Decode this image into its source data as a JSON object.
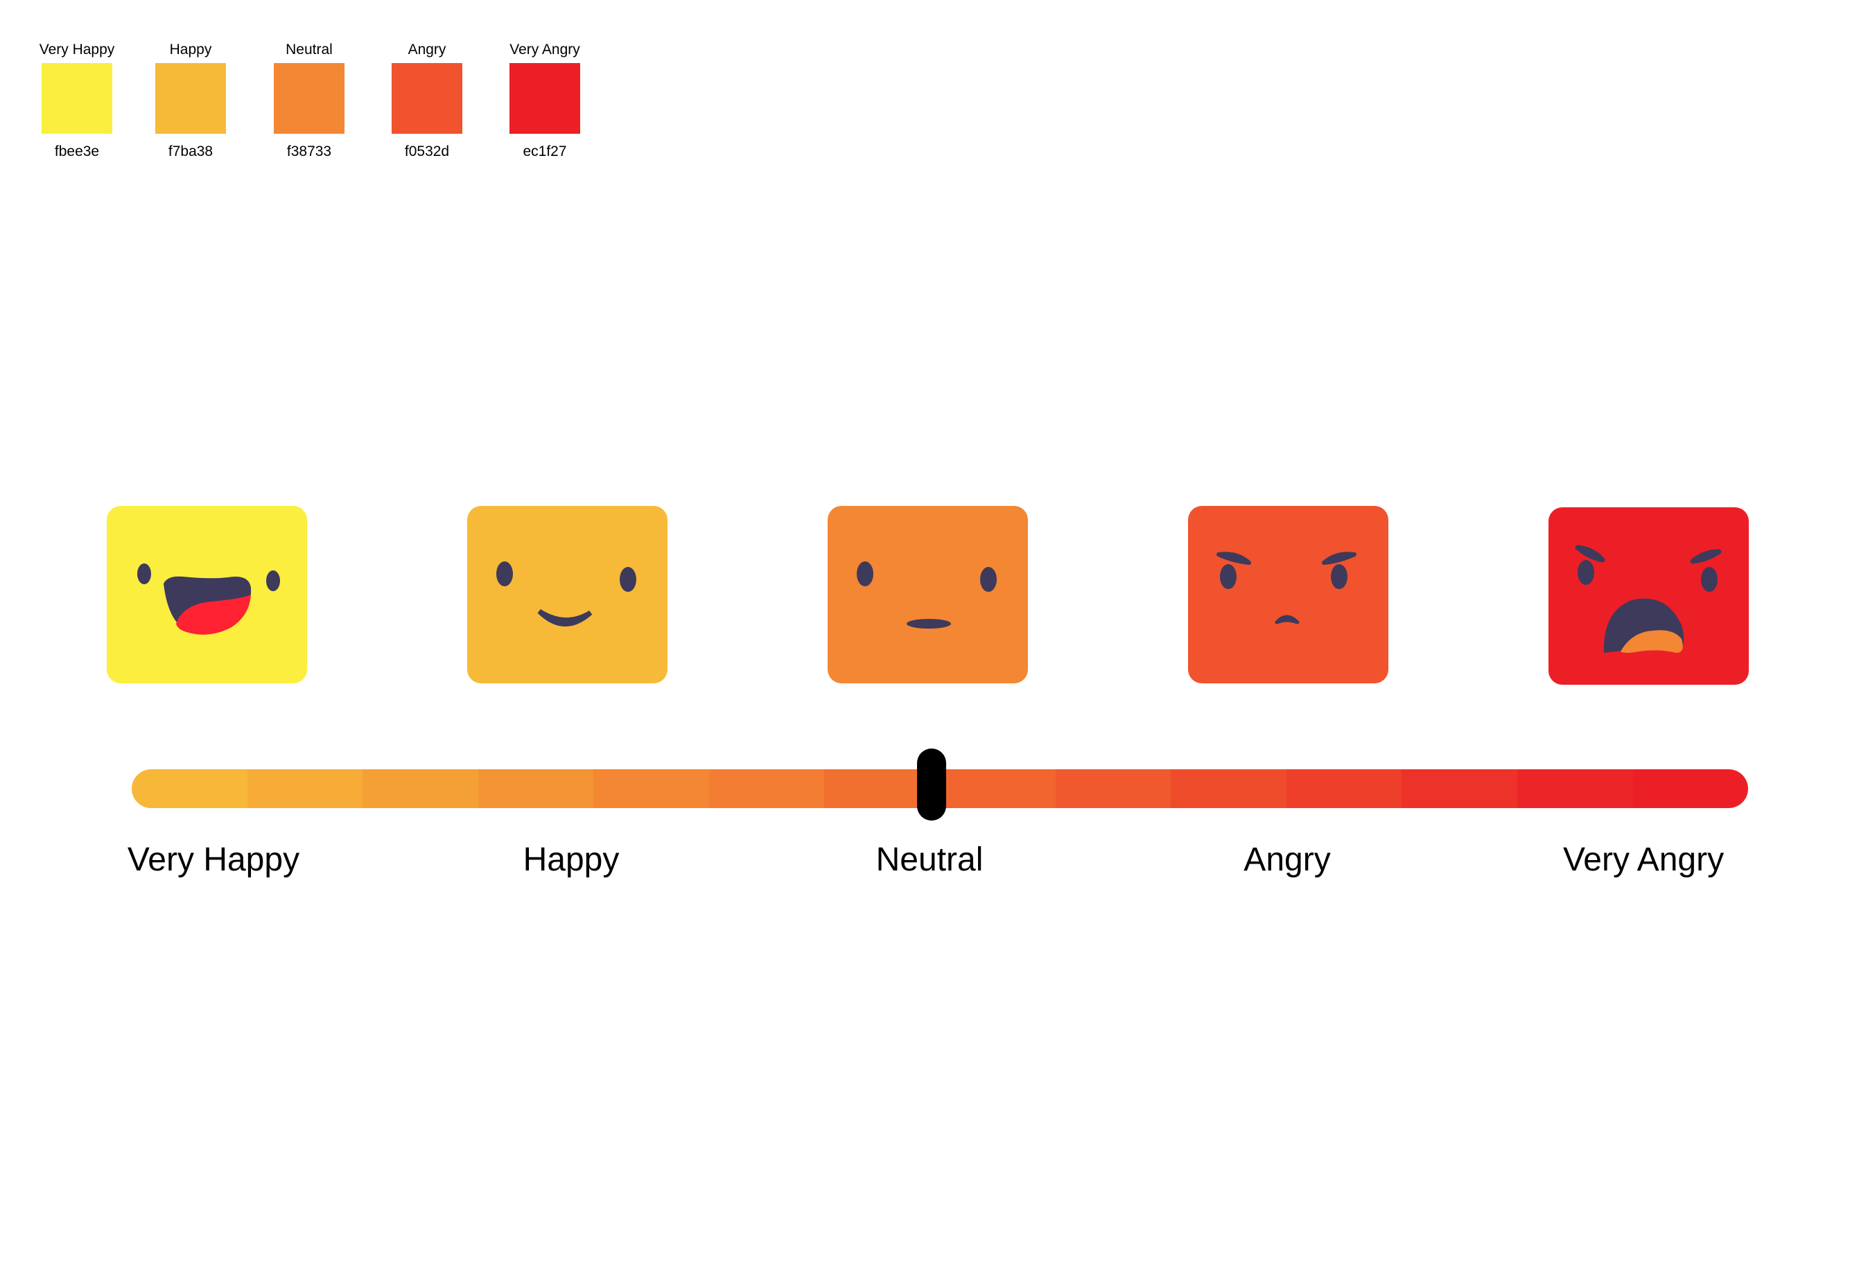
{
  "palette": [
    {
      "name": "Very Happy",
      "hex": "fbee3e",
      "color": "#fbee3e"
    },
    {
      "name": "Happy",
      "hex": "f7ba38",
      "color": "#f7ba38"
    },
    {
      "name": "Neutral",
      "hex": "f38733",
      "color": "#f38733"
    },
    {
      "name": "Angry",
      "hex": "f0532d",
      "color": "#f0532d"
    },
    {
      "name": "Very Angry",
      "hex": "ec1f27",
      "color": "#ec1f27"
    }
  ],
  "faces": [
    {
      "mood": "very-happy",
      "color": "#fbee3e"
    },
    {
      "mood": "happy",
      "color": "#f7ba38"
    },
    {
      "mood": "neutral",
      "color": "#f38733"
    },
    {
      "mood": "angry",
      "color": "#f0532d"
    },
    {
      "mood": "very-angry",
      "color": "#ec1f27"
    }
  ],
  "scale": {
    "labels": [
      "Very Happy",
      "Happy",
      "Neutral",
      "Angry",
      "Very Angry"
    ],
    "segment_colors": [
      "#f7b738",
      "#f6ac36",
      "#f5a034",
      "#f39333",
      "#f38733",
      "#f37d32",
      "#f2702f",
      "#f2652e",
      "#f0592d",
      "#ef4c2c",
      "#ee3f2a",
      "#ed3229",
      "#ec2628",
      "#ec1f27"
    ],
    "selected": "Neutral",
    "selected_position": 0.5
  },
  "colors": {
    "face_feature": "#3d3a5c",
    "mouth_red": "#ff2233",
    "tongue_orange": "#f38733"
  }
}
